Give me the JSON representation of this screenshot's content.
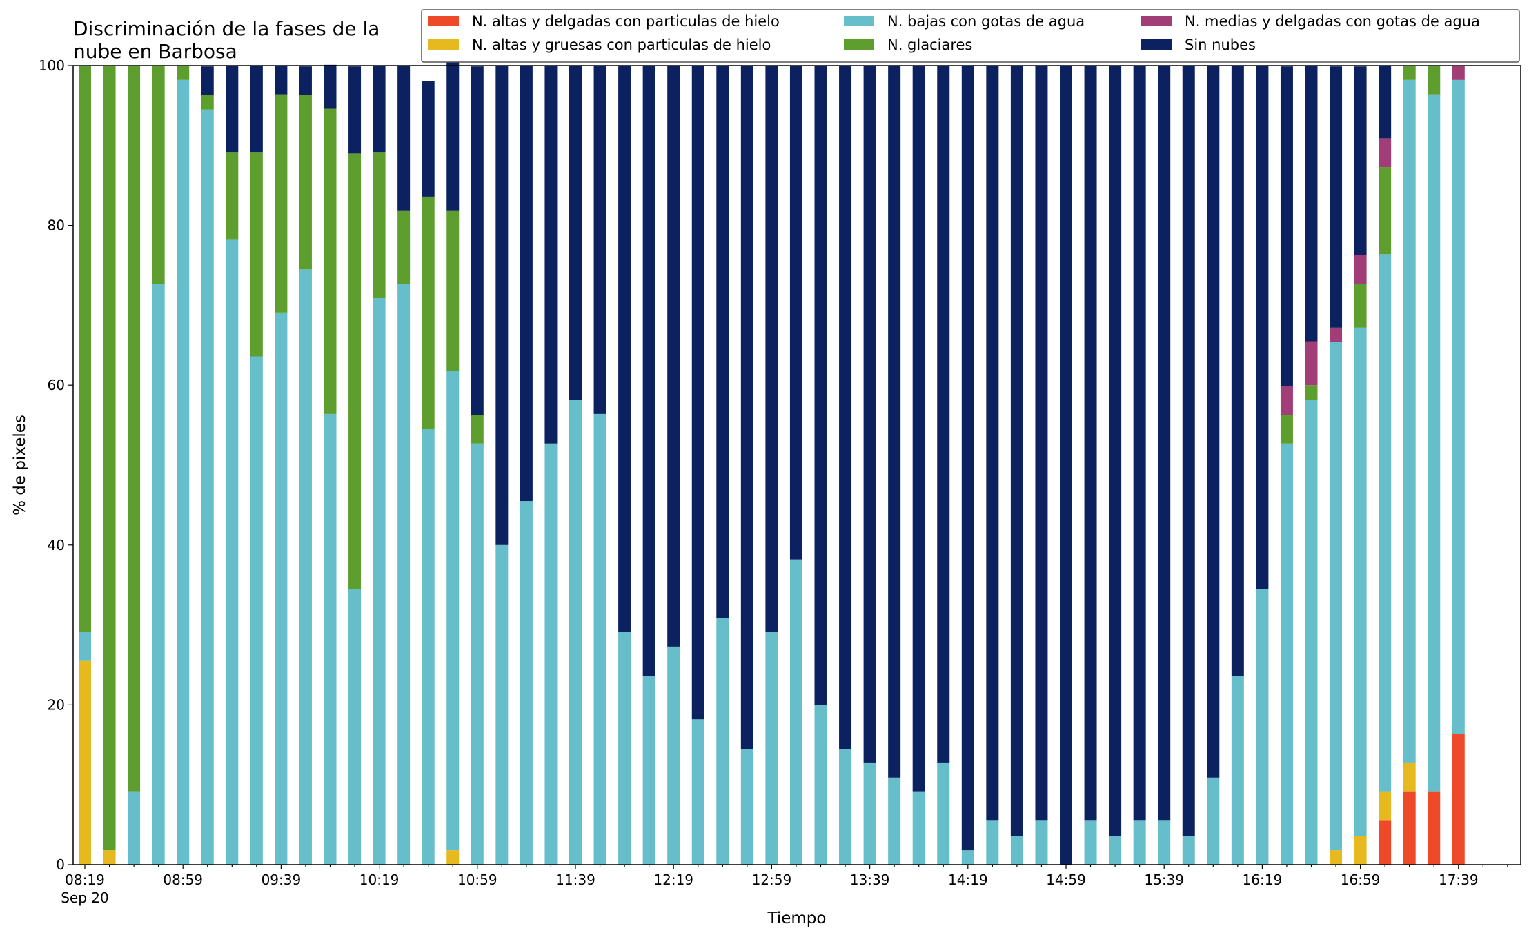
{
  "chart_data": {
    "type": "bar",
    "stacked": true,
    "title_lines": [
      "Discriminación de la fases de la",
      "nube en Barbosa"
    ],
    "xlabel": "Tiempo",
    "ylabel": "% de pixeles",
    "ylim": [
      0,
      100
    ],
    "yticks": [
      0,
      20,
      40,
      60,
      80,
      100
    ],
    "x_tick_labels": [
      "08:19",
      "08:59",
      "09:39",
      "10:19",
      "10:59",
      "11:39",
      "12:19",
      "12:59",
      "13:39",
      "14:19",
      "14:59",
      "15:39",
      "16:19",
      "16:59",
      "17:39"
    ],
    "x_sub_label": "Sep 20",
    "grid": false,
    "legend_position": "top-right",
    "legend_order": [
      "s_altas_delgadas",
      "s_altas_gruesas",
      "s_bajas",
      "s_glaciares",
      "s_medias",
      "s_sin_nubes"
    ],
    "series": [
      {
        "key": "s_altas_delgadas",
        "name": "N. altas y delgadas con particulas de hielo",
        "color": "#ee4a2a",
        "values": [
          0,
          0,
          0,
          0,
          0,
          0,
          0,
          0,
          0,
          0,
          0,
          0,
          0,
          0,
          0,
          0,
          0,
          0,
          0,
          0,
          0,
          0,
          0,
          0,
          0,
          0,
          0,
          0,
          0,
          0,
          0,
          0,
          0,
          0,
          0,
          0,
          0,
          0,
          0,
          0,
          0,
          0,
          0,
          0,
          0,
          0,
          0,
          0,
          0,
          0,
          0,
          0,
          0,
          5.5,
          9.1,
          9.1,
          16.4
        ]
      },
      {
        "key": "s_altas_gruesas",
        "name": "N. altas y gruesas con particulas de hielo",
        "color": "#e6b91e",
        "values": [
          25.5,
          1.8,
          0,
          0,
          0,
          0,
          0,
          0,
          0,
          0,
          0,
          0,
          0,
          0,
          0,
          1.8,
          0,
          0,
          0,
          0,
          0,
          0,
          0,
          0,
          0,
          0,
          0,
          0,
          0,
          0,
          0,
          0,
          0,
          0,
          0,
          0,
          0,
          0,
          0,
          0,
          0,
          0,
          0,
          0,
          0,
          0,
          0,
          0,
          0,
          0,
          0,
          1.8,
          3.6,
          3.6,
          3.6,
          0,
          0
        ]
      },
      {
        "key": "s_bajas",
        "name": "N. bajas con gotas de agua",
        "color": "#65bec9",
        "values": [
          3.6,
          0,
          9.1,
          72.7,
          98.2,
          94.5,
          78.2,
          63.6,
          69.1,
          74.5,
          56.4,
          34.5,
          70.9,
          72.7,
          54.5,
          60.0,
          52.7,
          40.0,
          45.5,
          52.7,
          58.2,
          56.4,
          29.1,
          23.6,
          27.3,
          18.2,
          30.9,
          14.5,
          29.1,
          38.2,
          20.0,
          14.5,
          12.7,
          10.9,
          9.1,
          12.7,
          1.8,
          5.5,
          3.6,
          5.5,
          0,
          5.5,
          3.6,
          5.5,
          5.5,
          3.6,
          10.9,
          23.6,
          34.5,
          52.7,
          58.2,
          63.6,
          63.6,
          67.3,
          85.5,
          87.3,
          81.8
        ]
      },
      {
        "key": "s_glaciares",
        "name": "N. glaciares",
        "color": "#5e9e2e",
        "values": [
          70.9,
          98.2,
          90.9,
          27.3,
          1.8,
          1.8,
          10.9,
          25.5,
          27.3,
          21.8,
          38.2,
          54.5,
          18.2,
          9.1,
          29.1,
          20.0,
          3.6,
          0,
          0,
          0,
          0,
          0,
          0,
          0,
          0,
          0,
          0,
          0,
          0,
          0,
          0,
          0,
          0,
          0,
          0,
          0,
          0,
          0,
          0,
          0,
          0,
          0,
          0,
          0,
          0,
          0,
          0,
          0,
          0,
          3.6,
          1.8,
          0,
          5.5,
          10.9,
          1.8,
          3.6,
          0
        ]
      },
      {
        "key": "s_medias",
        "name": "N. medias y delgadas con gotas de agua",
        "color": "#a23e77",
        "values": [
          0,
          0,
          0,
          0,
          0,
          0,
          0,
          0,
          0,
          0,
          0,
          0,
          0,
          0,
          0,
          0,
          0,
          0,
          0,
          0,
          0,
          0,
          0,
          0,
          0,
          0,
          0,
          0,
          0,
          0,
          0,
          0,
          0,
          0,
          0,
          0,
          0,
          0,
          0,
          0,
          0,
          0,
          0,
          0,
          0,
          0,
          0,
          0,
          0,
          3.6,
          5.5,
          1.8,
          3.6,
          3.6,
          0,
          0,
          1.8
        ]
      },
      {
        "key": "s_sin_nubes",
        "name": "Sin nubes",
        "color": "#0c2260",
        "values": [
          0,
          0,
          0,
          0,
          0,
          3.6,
          10.9,
          10.9,
          3.6,
          3.6,
          5.5,
          10.9,
          10.9,
          18.2,
          14.5,
          20.0,
          43.6,
          60.0,
          54.5,
          47.3,
          41.8,
          43.6,
          70.9,
          76.4,
          72.7,
          81.8,
          69.1,
          85.5,
          70.9,
          61.8,
          80.0,
          85.5,
          87.3,
          89.1,
          90.9,
          87.3,
          98.2,
          94.5,
          96.4,
          94.5,
          100,
          94.5,
          96.4,
          94.5,
          94.5,
          96.4,
          89.1,
          76.4,
          65.5,
          40.0,
          34.5,
          32.7,
          23.6,
          9.1,
          0,
          0,
          0
        ]
      }
    ],
    "stack_order": [
      "s_altas_delgadas",
      "s_altas_gruesas",
      "s_bajas",
      "s_glaciares",
      "s_medias",
      "s_sin_nubes"
    ]
  }
}
